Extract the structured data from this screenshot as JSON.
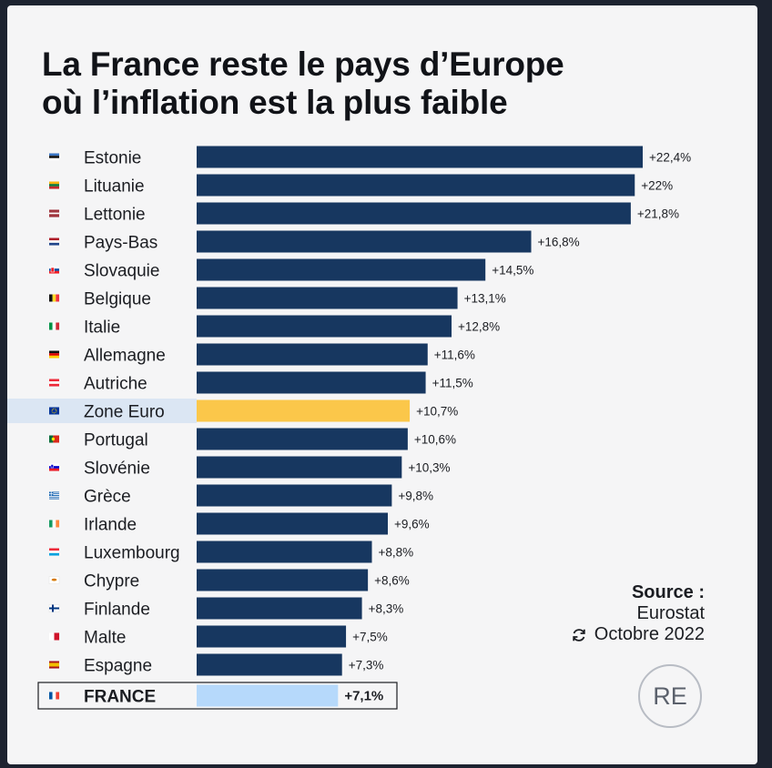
{
  "title_line1": "La France reste le pays d’Europe",
  "title_line2": "où l’inflation est la plus faible",
  "source": {
    "label": "Source :",
    "name": "Eurostat",
    "date": "Octobre 2022",
    "refresh_icon": "refresh-icon"
  },
  "logo_text": "RE",
  "colors": {
    "bar": "#173760",
    "eurozone": "#fbc74a",
    "france": "#b6d9fb",
    "highlight_row": "#dbe6f3"
  },
  "chart_data": {
    "type": "bar",
    "orientation": "horizontal",
    "title": "La France reste le pays d’Europe où l’inflation est la plus faible",
    "xlabel": "",
    "ylabel": "",
    "xlim": [
      0,
      22.4
    ],
    "grid": false,
    "legend": "none",
    "categories": [
      "Estonie",
      "Lituanie",
      "Lettonie",
      "Pays-Bas",
      "Slovaquie",
      "Belgique",
      "Italie",
      "Allemagne",
      "Autriche",
      "Zone Euro",
      "Portugal",
      "Slovénie",
      "Grèce",
      "Irlande",
      "Luxembourg",
      "Chypre",
      "Finlande",
      "Malte",
      "Espagne",
      "FRANCE"
    ],
    "values": [
      22.4,
      22,
      21.8,
      16.8,
      14.5,
      13.1,
      12.8,
      11.6,
      11.5,
      10.7,
      10.6,
      10.3,
      9.8,
      9.6,
      8.8,
      8.6,
      8.3,
      7.5,
      7.3,
      7.1
    ],
    "labels": [
      "+22,4%",
      "+22%",
      "+21,8%",
      "+16,8%",
      "+14,5%",
      "+13,1%",
      "+12,8%",
      "+11,6%",
      "+11,5%",
      "+10,7%",
      "+10,6%",
      "+10,3%",
      "+9,8%",
      "+9,6%",
      "+8,8%",
      "+8,6%",
      "+8,3%",
      "+7,5%",
      "+7,3%",
      "+7,1%"
    ],
    "flags": [
      "flag-estonia-icon",
      "flag-lithuania-icon",
      "flag-latvia-icon",
      "flag-netherlands-icon",
      "flag-slovakia-icon",
      "flag-belgium-icon",
      "flag-italy-icon",
      "flag-germany-icon",
      "flag-austria-icon",
      "flag-eu-icon",
      "flag-portugal-icon",
      "flag-slovenia-icon",
      "flag-greece-icon",
      "flag-ireland-icon",
      "flag-luxembourg-icon",
      "flag-cyprus-icon",
      "flag-finland-icon",
      "flag-malta-icon",
      "flag-spain-icon",
      "flag-france-icon"
    ],
    "highlight": {
      "Zone Euro": "eurozone",
      "FRANCE": "france"
    }
  }
}
